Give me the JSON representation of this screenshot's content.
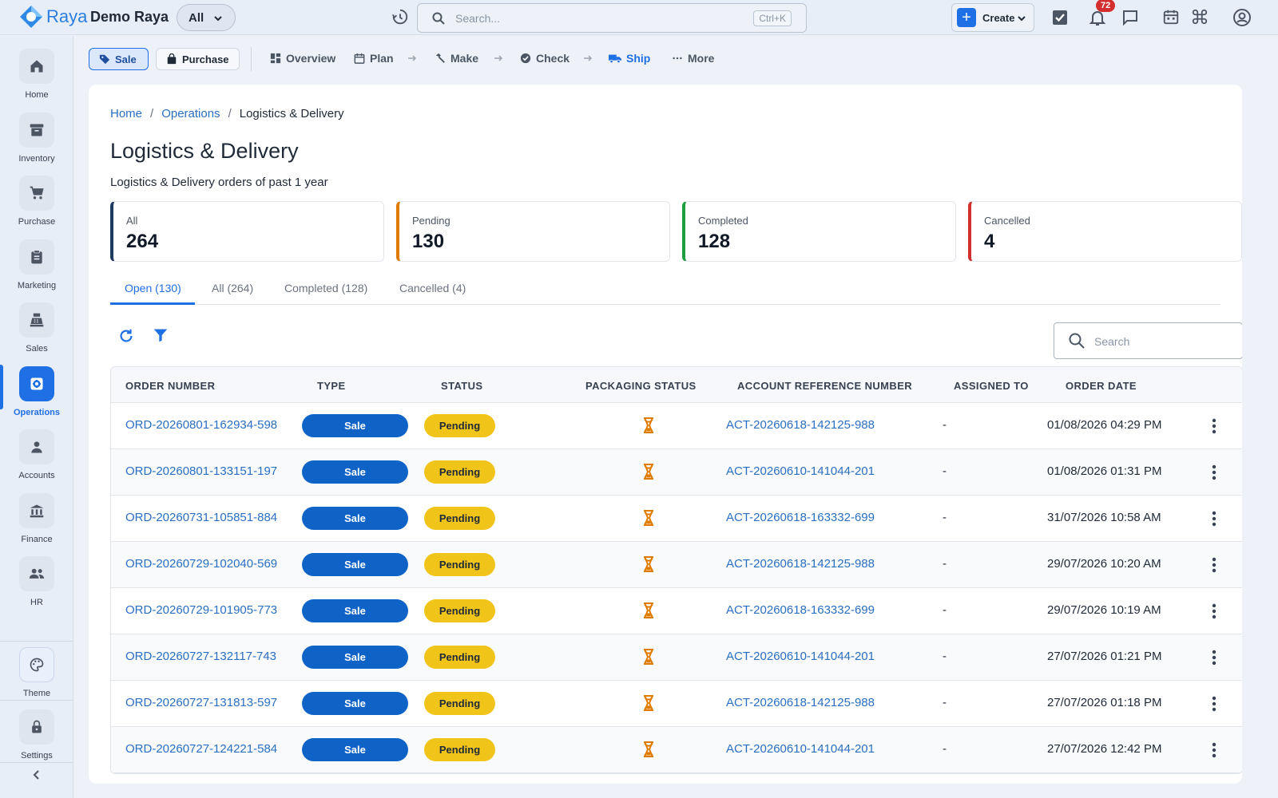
{
  "app": {
    "logo_text": "Raya",
    "company": "Demo Raya",
    "scope": "All",
    "search_placeholder": "Search...",
    "search_shortcut": "Ctrl+K",
    "create_label": "Create",
    "notification_count": "72"
  },
  "sidebar": {
    "items": [
      {
        "label": "Home",
        "icon": "home-icon"
      },
      {
        "label": "Inventory",
        "icon": "archive-icon"
      },
      {
        "label": "Purchase",
        "icon": "cart-icon"
      },
      {
        "label": "Marketing",
        "icon": "clipboard-icon"
      },
      {
        "label": "Sales",
        "icon": "register-icon"
      },
      {
        "label": "Operations",
        "icon": "gear-icon",
        "active": true
      },
      {
        "label": "Accounts",
        "icon": "person-icon"
      },
      {
        "label": "Finance",
        "icon": "bank-icon"
      },
      {
        "label": "HR",
        "icon": "group-icon"
      }
    ],
    "theme_label": "Theme",
    "settings_label": "Settings"
  },
  "subnav": {
    "sale_label": "Sale",
    "purchase_label": "Purchase",
    "steps": [
      "Overview",
      "Plan",
      "Make",
      "Check",
      "Ship",
      "More"
    ],
    "active_step": "Ship"
  },
  "breadcrumb": {
    "home": "Home",
    "operations": "Operations",
    "current": "Logistics & Delivery",
    "separator": "/"
  },
  "page": {
    "title": "Logistics & Delivery",
    "subtitle": "Logistics & Delivery orders of past 1 year"
  },
  "stats": [
    {
      "label": "All",
      "value": "264",
      "color": "#1e3a5f"
    },
    {
      "label": "Pending",
      "value": "130",
      "color": "#e07b00"
    },
    {
      "label": "Completed",
      "value": "128",
      "color": "#1e9e3e"
    },
    {
      "label": "Cancelled",
      "value": "4",
      "color": "#d32f2f"
    }
  ],
  "tabs": [
    "Open (130)",
    "All (264)",
    "Completed (128)",
    "Cancelled (4)"
  ],
  "table_search_placeholder": "Search",
  "table": {
    "columns": [
      "ORDER NUMBER",
      "TYPE",
      "STATUS",
      "PACKAGING STATUS",
      "ACCOUNT REFERENCE NUMBER",
      "ASSIGNED TO",
      "ORDER DATE"
    ],
    "rows": [
      {
        "order": "ORD-20260801-162934-598",
        "type": "Sale",
        "status": "Pending",
        "account": "ACT-20260618-142125-988",
        "assigned": "-",
        "date": "01/08/2026 04:29 PM"
      },
      {
        "order": "ORD-20260801-133151-197",
        "type": "Sale",
        "status": "Pending",
        "account": "ACT-20260610-141044-201",
        "assigned": "-",
        "date": "01/08/2026 01:31 PM"
      },
      {
        "order": "ORD-20260731-105851-884",
        "type": "Sale",
        "status": "Pending",
        "account": "ACT-20260618-163332-699",
        "assigned": "-",
        "date": "31/07/2026 10:58 AM"
      },
      {
        "order": "ORD-20260729-102040-569",
        "type": "Sale",
        "status": "Pending",
        "account": "ACT-20260618-142125-988",
        "assigned": "-",
        "date": "29/07/2026 10:20 AM"
      },
      {
        "order": "ORD-20260729-101905-773",
        "type": "Sale",
        "status": "Pending",
        "account": "ACT-20260618-163332-699",
        "assigned": "-",
        "date": "29/07/2026 10:19 AM"
      },
      {
        "order": "ORD-20260727-132117-743",
        "type": "Sale",
        "status": "Pending",
        "account": "ACT-20260610-141044-201",
        "assigned": "-",
        "date": "27/07/2026 01:21 PM"
      },
      {
        "order": "ORD-20260727-131813-597",
        "type": "Sale",
        "status": "Pending",
        "account": "ACT-20260618-142125-988",
        "assigned": "-",
        "date": "27/07/2026 01:18 PM"
      },
      {
        "order": "ORD-20260727-124221-584",
        "type": "Sale",
        "status": "Pending",
        "account": "ACT-20260610-141044-201",
        "assigned": "-",
        "date": "27/07/2026 12:42 PM"
      }
    ]
  }
}
